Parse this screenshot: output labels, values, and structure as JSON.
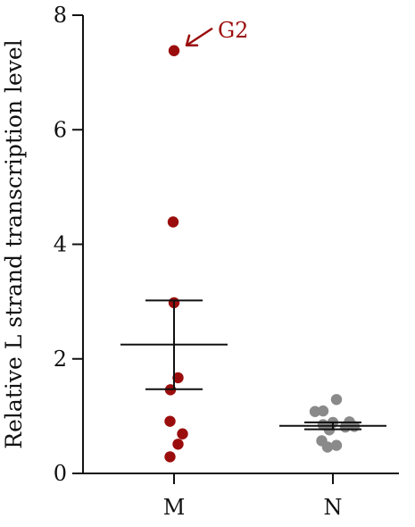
{
  "chart_data": {
    "type": "scatter",
    "title": "",
    "xlabel": "",
    "ylabel": "Relative L strand transcription level",
    "ylim": [
      0,
      8
    ],
    "yticks": [
      "0",
      "2",
      "4",
      "6",
      "8"
    ],
    "categories": [
      "M",
      "N"
    ],
    "grid": false,
    "legend": "none",
    "series": [
      {
        "category": "M",
        "color": "#9b0d0d",
        "values": [
          7.38,
          4.39,
          2.98,
          1.67,
          1.46,
          0.91,
          0.69,
          0.51,
          0.29
        ],
        "offsets": [
          0,
          -0.02,
          0,
          0.09,
          -0.08,
          -0.09,
          0.19,
          0.09,
          -0.09
        ],
        "mean": 2.25,
        "error_upper": 3.02,
        "error_lower": 1.47
      },
      {
        "category": "N",
        "color": "#8a8a8a",
        "values": [
          1.29,
          1.08,
          1.09,
          0.89,
          0.9,
          0.85,
          0.81,
          0.82,
          0.76,
          0.57,
          0.49,
          0.46
        ],
        "offsets": [
          0.08,
          -0.4,
          -0.22,
          0,
          0.37,
          -0.22,
          0.28,
          0.48,
          -0.08,
          -0.25,
          0.08,
          -0.12
        ],
        "mean": 0.83,
        "error_upper": 0.89,
        "error_lower": 0.77
      }
    ],
    "annotations": [
      {
        "text": "G2",
        "color": "#9b0d0d",
        "target_category": "M",
        "target_value": 7.38
      }
    ]
  }
}
